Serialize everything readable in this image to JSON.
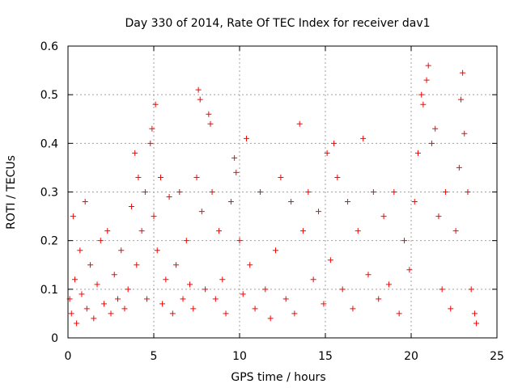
{
  "chart_data": {
    "type": "scatter",
    "title": "Day 330 of 2014, Rate Of TEC Index for receiver dav1",
    "xlabel": "GPS time / hours",
    "ylabel": "ROTI / TECUs",
    "xlim": [
      0,
      25
    ],
    "ylim": [
      0,
      0.6
    ],
    "x_ticks": [
      0,
      5,
      10,
      15,
      20,
      25
    ],
    "y_ticks": [
      0,
      0.1,
      0.2,
      0.3,
      0.4,
      0.5,
      0.6
    ],
    "x_tick_labels": [
      "0",
      "5",
      "10",
      "15",
      "20",
      "25"
    ],
    "y_tick_labels": [
      "0",
      "0.1",
      "0.2",
      "0.3",
      "0.4",
      "0.5",
      "0.6"
    ],
    "grid": true,
    "marker": "plus",
    "color": "#ff0000",
    "points": [
      [
        0.1,
        0.08
      ],
      [
        0.2,
        0.05
      ],
      [
        0.3,
        0.25
      ],
      [
        0.4,
        0.12
      ],
      [
        0.5,
        0.03
      ],
      [
        0.7,
        0.18
      ],
      [
        0.8,
        0.09
      ],
      [
        1.0,
        0.28
      ],
      [
        1.1,
        0.06
      ],
      [
        1.3,
        0.15
      ],
      [
        1.5,
        0.04
      ],
      [
        1.7,
        0.11
      ],
      [
        1.9,
        0.2
      ],
      [
        2.1,
        0.07
      ],
      [
        2.3,
        0.22
      ],
      [
        2.5,
        0.05
      ],
      [
        2.7,
        0.13
      ],
      [
        2.9,
        0.08
      ],
      [
        3.1,
        0.18
      ],
      [
        3.3,
        0.06
      ],
      [
        3.5,
        0.1
      ],
      [
        3.7,
        0.27
      ],
      [
        3.9,
        0.38
      ],
      [
        4.0,
        0.15
      ],
      [
        4.1,
        0.33
      ],
      [
        4.3,
        0.22
      ],
      [
        4.5,
        0.3
      ],
      [
        4.6,
        0.08
      ],
      [
        4.8,
        0.4
      ],
      [
        4.9,
        0.43
      ],
      [
        5.0,
        0.25
      ],
      [
        5.1,
        0.48
      ],
      [
        5.2,
        0.18
      ],
      [
        5.4,
        0.33
      ],
      [
        5.5,
        0.07
      ],
      [
        5.7,
        0.12
      ],
      [
        5.9,
        0.29
      ],
      [
        6.1,
        0.05
      ],
      [
        6.3,
        0.15
      ],
      [
        6.5,
        0.3
      ],
      [
        6.7,
        0.08
      ],
      [
        6.9,
        0.2
      ],
      [
        7.1,
        0.11
      ],
      [
        7.3,
        0.06
      ],
      [
        7.5,
        0.33
      ],
      [
        7.6,
        0.51
      ],
      [
        7.7,
        0.49
      ],
      [
        7.8,
        0.26
      ],
      [
        8.0,
        0.1
      ],
      [
        8.2,
        0.46
      ],
      [
        8.3,
        0.44
      ],
      [
        8.4,
        0.3
      ],
      [
        8.6,
        0.08
      ],
      [
        8.8,
        0.22
      ],
      [
        9.0,
        0.12
      ],
      [
        9.2,
        0.05
      ],
      [
        9.5,
        0.28
      ],
      [
        9.7,
        0.37
      ],
      [
        9.8,
        0.34
      ],
      [
        10.0,
        0.2
      ],
      [
        10.2,
        0.09
      ],
      [
        10.4,
        0.41
      ],
      [
        10.6,
        0.15
      ],
      [
        10.9,
        0.06
      ],
      [
        11.2,
        0.3
      ],
      [
        11.5,
        0.1
      ],
      [
        11.8,
        0.04
      ],
      [
        12.1,
        0.18
      ],
      [
        12.4,
        0.33
      ],
      [
        12.7,
        0.08
      ],
      [
        13.0,
        0.28
      ],
      [
        13.2,
        0.05
      ],
      [
        13.5,
        0.44
      ],
      [
        13.7,
        0.22
      ],
      [
        14.0,
        0.3
      ],
      [
        14.3,
        0.12
      ],
      [
        14.6,
        0.26
      ],
      [
        14.9,
        0.07
      ],
      [
        15.1,
        0.38
      ],
      [
        15.3,
        0.16
      ],
      [
        15.5,
        0.4
      ],
      [
        15.7,
        0.33
      ],
      [
        16.0,
        0.1
      ],
      [
        16.3,
        0.28
      ],
      [
        16.6,
        0.06
      ],
      [
        16.9,
        0.22
      ],
      [
        17.2,
        0.41
      ],
      [
        17.5,
        0.13
      ],
      [
        17.8,
        0.3
      ],
      [
        18.1,
        0.08
      ],
      [
        18.4,
        0.25
      ],
      [
        18.7,
        0.11
      ],
      [
        19.0,
        0.3
      ],
      [
        19.3,
        0.05
      ],
      [
        19.6,
        0.2
      ],
      [
        19.9,
        0.14
      ],
      [
        20.2,
        0.28
      ],
      [
        20.4,
        0.38
      ],
      [
        20.6,
        0.5
      ],
      [
        20.7,
        0.48
      ],
      [
        20.9,
        0.53
      ],
      [
        21.0,
        0.56
      ],
      [
        21.2,
        0.4
      ],
      [
        21.4,
        0.43
      ],
      [
        21.6,
        0.25
      ],
      [
        21.8,
        0.1
      ],
      [
        22.0,
        0.3
      ],
      [
        22.3,
        0.06
      ],
      [
        22.6,
        0.22
      ],
      [
        22.8,
        0.35
      ],
      [
        22.9,
        0.49
      ],
      [
        23.0,
        0.545
      ],
      [
        23.1,
        0.42
      ],
      [
        23.3,
        0.3
      ],
      [
        23.5,
        0.1
      ],
      [
        23.7,
        0.05
      ],
      [
        23.8,
        0.03
      ]
    ]
  }
}
